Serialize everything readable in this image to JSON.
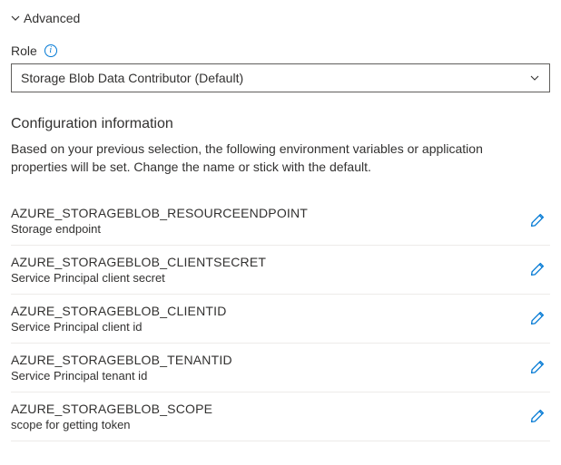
{
  "advanced": {
    "label": "Advanced",
    "expanded": true
  },
  "role": {
    "label": "Role",
    "info_icon": "info-icon",
    "selected": "Storage Blob Data Contributor (Default)"
  },
  "config_section": {
    "title": "Configuration information",
    "description": "Based on your previous selection, the following environment variables or application properties will be set. Change the name or stick with the default."
  },
  "config_items": [
    {
      "name": "AZURE_STORAGEBLOB_RESOURCEENDPOINT",
      "desc": "Storage endpoint"
    },
    {
      "name": "AZURE_STORAGEBLOB_CLIENTSECRET",
      "desc": "Service Principal client secret"
    },
    {
      "name": "AZURE_STORAGEBLOB_CLIENTID",
      "desc": "Service Principal client id"
    },
    {
      "name": "AZURE_STORAGEBLOB_TENANTID",
      "desc": "Service Principal tenant id"
    },
    {
      "name": "AZURE_STORAGEBLOB_SCOPE",
      "desc": "scope for getting token"
    }
  ],
  "colors": {
    "accent": "#0078d4",
    "text": "#323130",
    "border": "#edebe9",
    "input_border": "#605e5c",
    "background": "#ffffff"
  }
}
